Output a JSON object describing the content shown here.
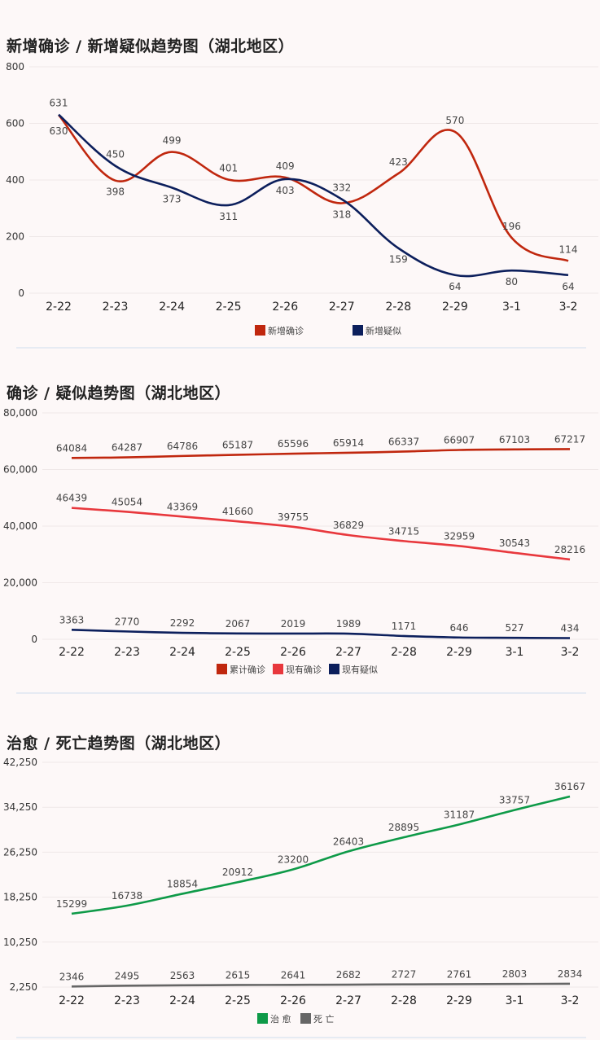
{
  "chart_data": [
    {
      "type": "line",
      "title": "新增确诊 / 新增疑似趋势图（湖北地区）",
      "categories": [
        "2-22",
        "2-23",
        "2-24",
        "2-25",
        "2-26",
        "2-27",
        "2-28",
        "2-29",
        "3-1",
        "3-2"
      ],
      "yticks": [
        "0",
        "200",
        "400",
        "600",
        "800"
      ],
      "ylim": [
        0,
        800
      ],
      "grid": true,
      "legend_position": "bottom",
      "series": [
        {
          "name": "新增确诊",
          "color": "#c0270e",
          "values": [
            630,
            398,
            499,
            401,
            409,
            318,
            423,
            570,
            196,
            114
          ]
        },
        {
          "name": "新增疑似",
          "color": "#0c1f5c",
          "values": [
            631,
            450,
            373,
            311,
            403,
            332,
            159,
            64,
            80,
            64
          ]
        }
      ]
    },
    {
      "type": "line",
      "title": "确诊 / 疑似趋势图（湖北地区）",
      "categories": [
        "2-22",
        "2-23",
        "2-24",
        "2-25",
        "2-26",
        "2-27",
        "2-28",
        "2-29",
        "3-1",
        "3-2"
      ],
      "yticks": [
        "0",
        "20,000",
        "40,000",
        "60,000",
        "80,000"
      ],
      "ylim": [
        0,
        80000
      ],
      "grid": true,
      "legend_position": "bottom",
      "series": [
        {
          "name": "累计确诊",
          "color": "#c0270e",
          "values": [
            64084,
            64287,
            64786,
            65187,
            65596,
            65914,
            66337,
            66907,
            67103,
            67217
          ]
        },
        {
          "name": "现有确诊",
          "color": "#e8383d",
          "values": [
            46439,
            45054,
            43369,
            41660,
            39755,
            36829,
            34715,
            32959,
            30543,
            28216
          ]
        },
        {
          "name": "现有疑似",
          "color": "#0c1f5c",
          "values": [
            3363,
            2770,
            2292,
            2067,
            2019,
            1989,
            1171,
            646,
            527,
            434
          ]
        }
      ]
    },
    {
      "type": "line",
      "title": "治愈 / 死亡趋势图（湖北地区）",
      "categories": [
        "2-22",
        "2-23",
        "2-24",
        "2-25",
        "2-26",
        "2-27",
        "2-28",
        "2-29",
        "3-1",
        "3-2"
      ],
      "yticks": [
        "2,250",
        "10,250",
        "18,250",
        "26,250",
        "34,250",
        "42,250"
      ],
      "ylim": [
        2250,
        42250
      ],
      "grid": true,
      "legend_position": "bottom",
      "series": [
        {
          "name": "治 愈",
          "color": "#0e9a48",
          "values": [
            15299,
            16738,
            18854,
            20912,
            23200,
            26403,
            28895,
            31187,
            33757,
            36167
          ]
        },
        {
          "name": "死 亡",
          "color": "#666666",
          "values": [
            2346,
            2495,
            2563,
            2615,
            2641,
            2682,
            2727,
            2761,
            2803,
            2834
          ]
        }
      ]
    }
  ]
}
